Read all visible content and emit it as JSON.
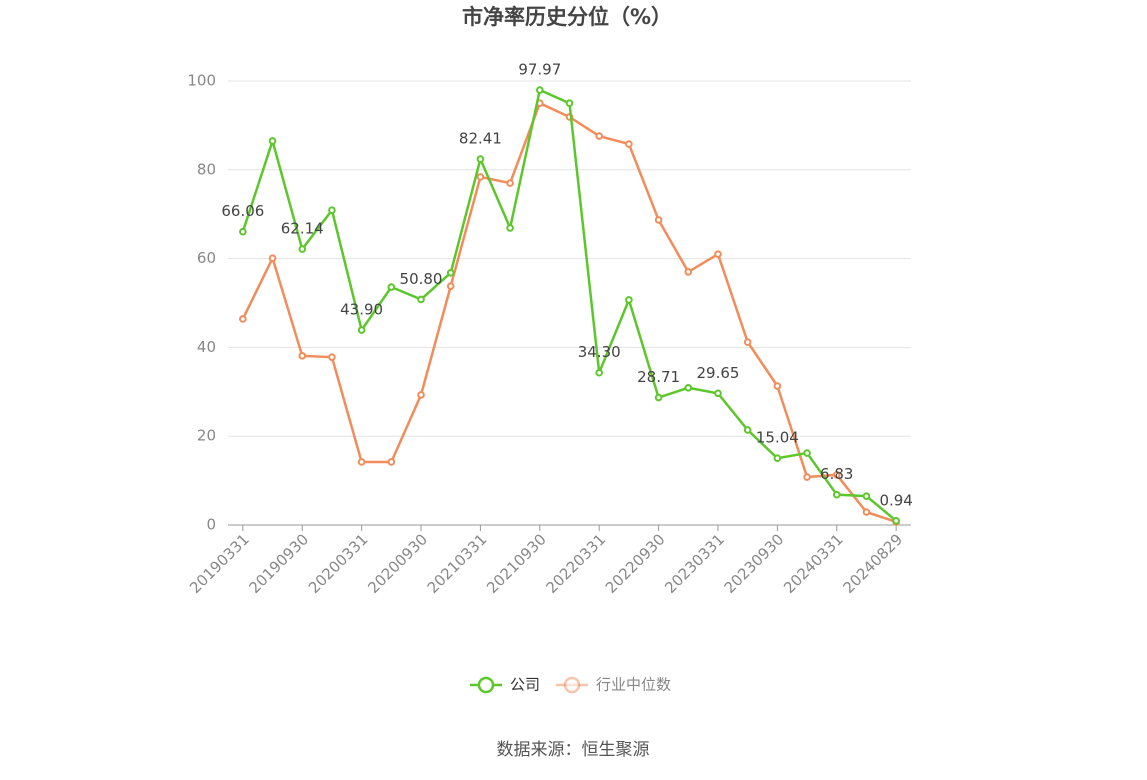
{
  "chart_data": {
    "type": "line",
    "title": "市净率历史分位（%）",
    "source": "数据来源：恒生聚源",
    "categories": [
      "20190331",
      null,
      "20190930",
      null,
      "20200331",
      null,
      "20200930",
      null,
      "20210331",
      null,
      "20210930",
      null,
      "20220331",
      null,
      "20220930",
      null,
      "20230331",
      null,
      "20230930",
      null,
      "20240331",
      null,
      "20240829"
    ],
    "series": [
      {
        "name": "公司",
        "color": "#5cc72a",
        "values": [
          66.06,
          86.5,
          62.14,
          70.9,
          43.9,
          53.6,
          50.8,
          56.8,
          82.41,
          66.9,
          97.97,
          95.0,
          34.3,
          50.7,
          28.71,
          30.9,
          29.65,
          21.4,
          15.04,
          16.2,
          6.83,
          6.5,
          0.94
        ],
        "value_labels": [
          "66.06",
          null,
          "62.14",
          null,
          "43.90",
          null,
          "50.80",
          null,
          "82.41",
          null,
          "97.97",
          null,
          "34.30",
          null,
          "28.71",
          null,
          "29.65",
          null,
          "15.04",
          null,
          "6.83",
          null,
          "0.94"
        ]
      },
      {
        "name": "行业中位数",
        "color": "#f28c5a",
        "values": [
          46.4,
          60.1,
          38.1,
          37.8,
          14.2,
          14.2,
          29.3,
          53.8,
          78.4,
          77.0,
          95.0,
          91.9,
          87.6,
          85.8,
          68.7,
          57.0,
          61.0,
          41.2,
          31.3,
          10.8,
          11.3,
          2.9,
          0.7
        ]
      }
    ],
    "ylim": [
      0,
      100
    ],
    "yticks": [
      0,
      20,
      40,
      60,
      80,
      100
    ],
    "grid": true
  }
}
